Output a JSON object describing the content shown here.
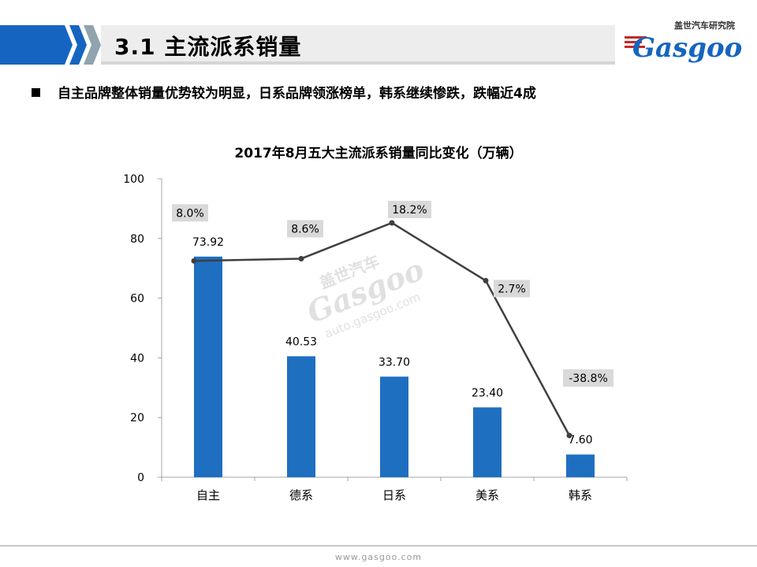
{
  "header": {
    "section_title": "3.1 主流派系销量"
  },
  "logo": {
    "cn_text": "盖世汽车研究院",
    "en_text": "Gasgoo"
  },
  "bullet": {
    "text": "自主品牌整体销量优势较为明显，日系品牌领涨榜单，韩系继续惨跌，跌幅近4成"
  },
  "watermark": {
    "cn": "盖世汽车",
    "en": "Gasgoo",
    "url": "auto.gasgoo.com"
  },
  "footer": {
    "url": "www.gasgoo.com"
  },
  "colors": {
    "bar": "#1f6fc1",
    "line": "#404040",
    "header_blue": "#1565c0",
    "label_bg": "#d9d9d9"
  },
  "chart_data": {
    "type": "bar",
    "title": "2017年8月五大主流派系销量同比变化（万辆）",
    "categories": [
      "自主",
      "德系",
      "日系",
      "美系",
      "韩系"
    ],
    "values": [
      73.92,
      40.53,
      33.7,
      23.4,
      7.6
    ],
    "value_labels": [
      "73.92",
      "40.53",
      "33.70",
      "23.40",
      "7.60"
    ],
    "ylim": [
      0,
      100
    ],
    "yticks": [
      "0",
      "20",
      "40",
      "60",
      "80",
      "100"
    ],
    "growth": {
      "type": "line",
      "labels": [
        "8.0%",
        "8.6%",
        "18.2%",
        "2.7%",
        "-38.8%"
      ],
      "values": [
        8.0,
        8.6,
        18.2,
        2.7,
        -38.8
      ]
    }
  }
}
